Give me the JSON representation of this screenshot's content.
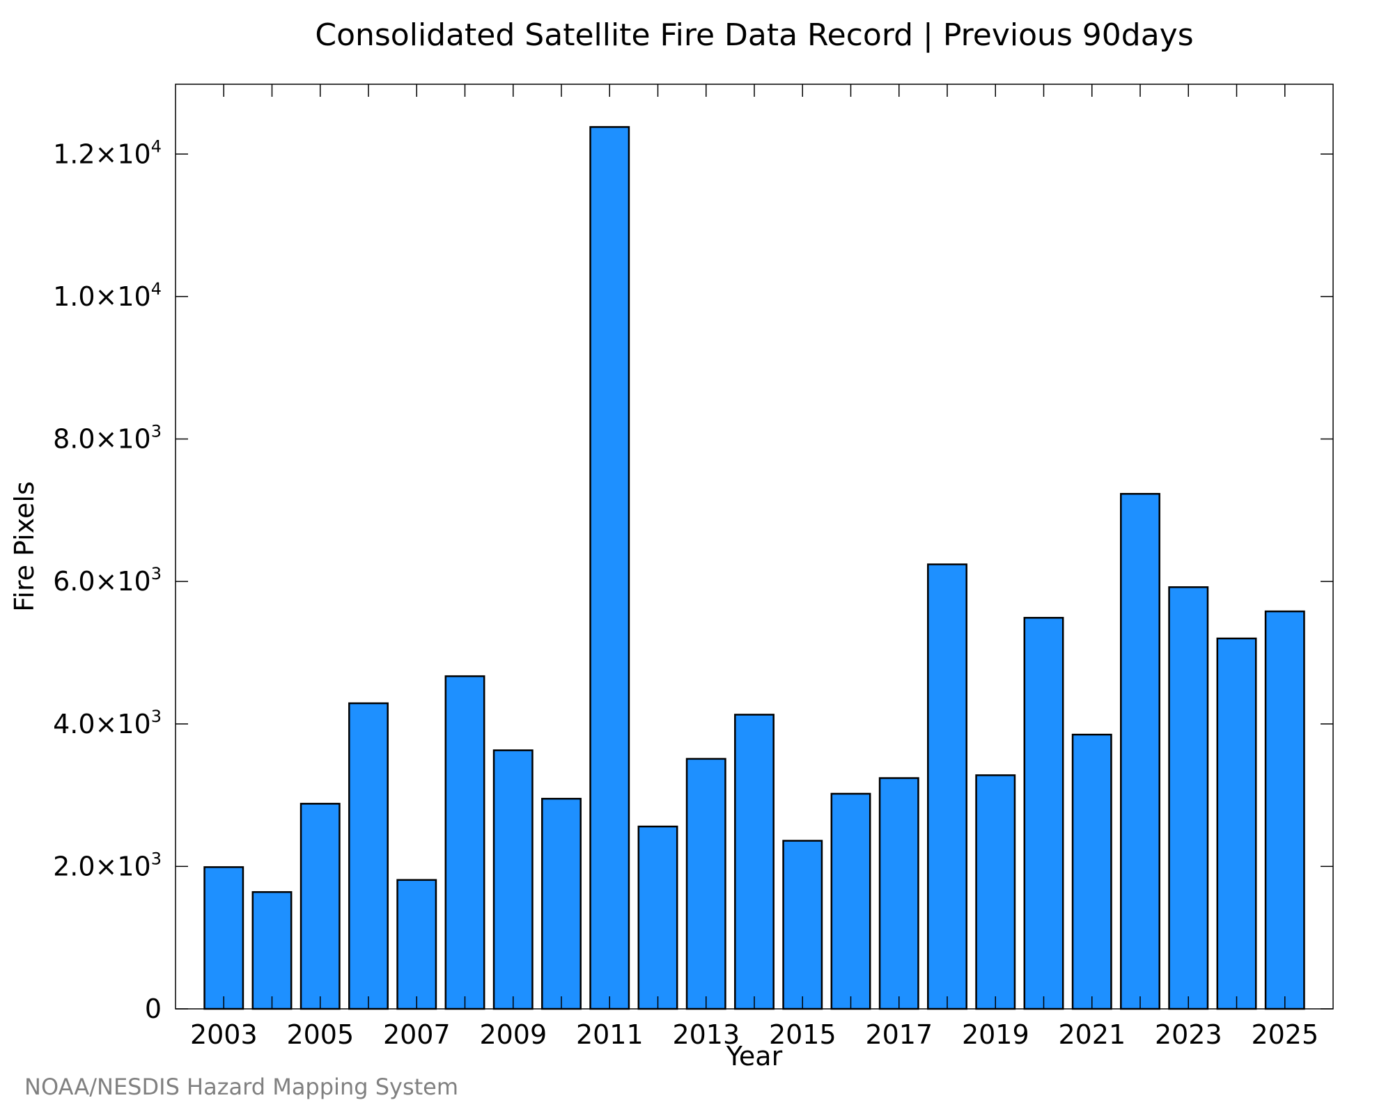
{
  "chart_data": {
    "type": "bar",
    "title": "Consolidated Satellite Fire Data Record | Previous 90days",
    "xlabel": "Year",
    "ylabel": "Fire Pixels",
    "categories": [
      "2003",
      "2004",
      "2005",
      "2006",
      "2007",
      "2008",
      "2009",
      "2010",
      "2011",
      "2012",
      "2013",
      "2014",
      "2015",
      "2016",
      "2017",
      "2018",
      "2019",
      "2020",
      "2021",
      "2022",
      "2023",
      "2024",
      "2025"
    ],
    "values": [
      1990,
      1640,
      2880,
      4290,
      1810,
      4670,
      3630,
      2950,
      12380,
      2560,
      3510,
      4130,
      2360,
      3020,
      3240,
      6240,
      3280,
      5490,
      3850,
      7230,
      5920,
      5200,
      5580
    ],
    "xlim": [
      2002.0,
      2026.0
    ],
    "ylim": [
      0,
      12980
    ],
    "x_tick_labels": [
      "2003",
      "2005",
      "2007",
      "2009",
      "2011",
      "2013",
      "2015",
      "2017",
      "2019",
      "2021",
      "2023",
      "2025"
    ],
    "y_ticks": [
      {
        "value": 0,
        "mantissa": "0",
        "exponent": ""
      },
      {
        "value": 2000,
        "mantissa": "2.0×10",
        "exponent": "3"
      },
      {
        "value": 4000,
        "mantissa": "4.0×10",
        "exponent": "3"
      },
      {
        "value": 6000,
        "mantissa": "6.0×10",
        "exponent": "3"
      },
      {
        "value": 8000,
        "mantissa": "8.0×10",
        "exponent": "3"
      },
      {
        "value": 10000,
        "mantissa": "1.0×10",
        "exponent": "4"
      },
      {
        "value": 12000,
        "mantissa": "1.2×10",
        "exponent": "4"
      }
    ],
    "grid": false,
    "bar_color": "#1e90ff",
    "bar_edge_color": "#000000"
  },
  "credit": "NOAA/NESDIS Hazard Mapping System"
}
